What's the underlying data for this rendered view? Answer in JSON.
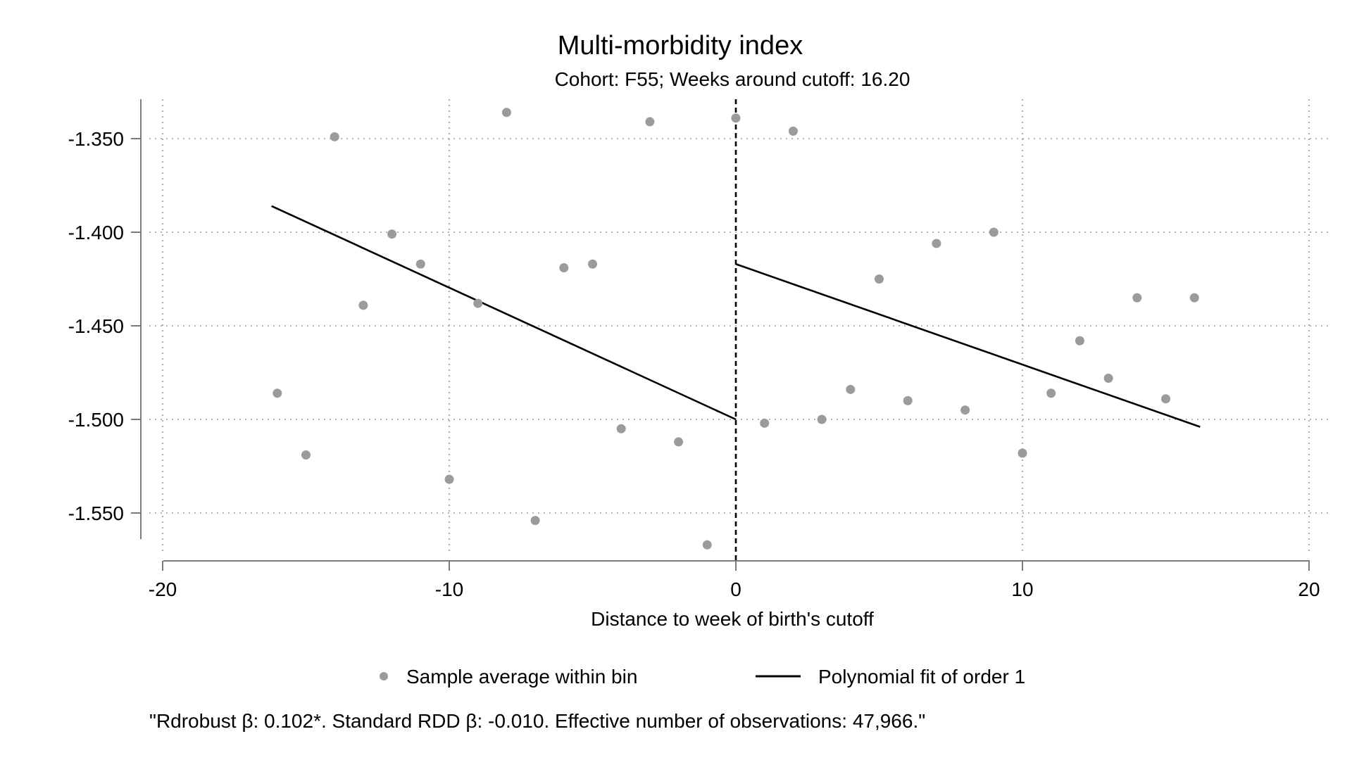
{
  "chart_data": {
    "type": "scatter",
    "title": "Multi-morbidity index",
    "subtitle": "Cohort: F55; Weeks around cutoff: 16.20",
    "xlabel": "Distance to week of birth's cutoff",
    "ylabel": "",
    "xlim": [
      -20,
      20
    ],
    "ylim": [
      -1.575,
      -1.33
    ],
    "x_ticks": [
      -20,
      -10,
      0,
      10,
      20
    ],
    "x_tick_labels": [
      "-20",
      "-10",
      "0",
      "10",
      "20"
    ],
    "y_ticks": [
      -1.35,
      -1.4,
      -1.45,
      -1.5,
      -1.55
    ],
    "y_tick_labels": [
      "-1.350",
      "-1.400",
      "-1.450",
      "-1.500",
      "-1.550"
    ],
    "grid": true,
    "cutoff_line_x": 0,
    "series": [
      {
        "name": "Sample average within bin",
        "kind": "scatter",
        "color": "#9b9b9b",
        "x": [
          -16,
          -15,
          -14,
          -13,
          -12,
          -11,
          -10,
          -9,
          -8,
          -7,
          -6,
          -5,
          -4,
          -3,
          -2,
          -1,
          0,
          1,
          2,
          3,
          4,
          5,
          6,
          7,
          8,
          9,
          10,
          11,
          12,
          13,
          14,
          15,
          16
        ],
        "y": [
          -1.486,
          -1.519,
          -1.349,
          -1.439,
          -1.401,
          -1.417,
          -1.532,
          -1.438,
          -1.336,
          -1.554,
          -1.419,
          -1.417,
          -1.505,
          -1.341,
          -1.512,
          -1.567,
          -1.339,
          -1.502,
          -1.346,
          -1.5,
          -1.484,
          -1.425,
          -1.49,
          -1.406,
          -1.495,
          -1.4,
          -1.518,
          -1.486,
          -1.458,
          -1.478,
          -1.435,
          -1.489,
          -1.435
        ]
      },
      {
        "name": "Polynomial fit of order 1",
        "kind": "line",
        "color": "#000000",
        "segments": [
          {
            "x": [
              -16.2,
              0
            ],
            "y": [
              -1.386,
              -1.5
            ]
          },
          {
            "x": [
              0,
              16.2
            ],
            "y": [
              -1.417,
              -1.504
            ]
          }
        ]
      }
    ],
    "legend": {
      "placement": "bottom",
      "entries": [
        "Sample average within bin",
        "Polynomial fit of order 1"
      ]
    },
    "note": "\"Rdrobust β: 0.102*. Standard RDD β: -0.010. Effective number of observations: 47,966.\""
  }
}
